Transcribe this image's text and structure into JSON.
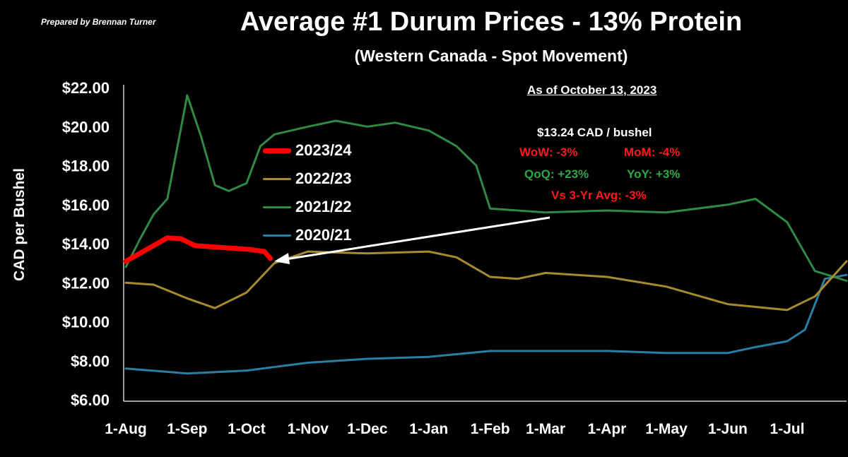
{
  "header": {
    "credit": "Prepared by Brennan Turner",
    "title": "Average #1 Durum Prices - 13% Protein",
    "subtitle": "(Western Canada - Spot Movement)"
  },
  "annotation": {
    "as_of": "As of October 13, 2023",
    "price": "$13.24 CAD / bushel",
    "wow": "WoW: -3%",
    "mom": "MoM: -4%",
    "qoq": "QoQ: +23%",
    "yoy": "YoY: +3%",
    "vs3yr": "Vs 3-Yr Avg: -3%"
  },
  "colors": {
    "red": "#ff0000",
    "gold": "#a88a2e",
    "green": "#2f8a44",
    "blue": "#2a7ea3",
    "stat_red": "#ff1a1a",
    "stat_green": "#2fa84a"
  },
  "chart_data": {
    "type": "line",
    "title": "Average #1 Durum Prices - 13% Protein",
    "subtitle": "(Western Canada - Spot Movement)",
    "xlabel": "",
    "ylabel": "CAD per Bushel",
    "ylim": [
      6,
      22
    ],
    "yticks": [
      "$6.00",
      "$8.00",
      "$10.00",
      "$12.00",
      "$14.00",
      "$16.00",
      "$18.00",
      "$20.00",
      "$22.00"
    ],
    "xticks": [
      "1-Aug",
      "1-Sep",
      "1-Oct",
      "1-Nov",
      "1-Dec",
      "1-Jan",
      "1-Feb",
      "1-Mar",
      "1-Apr",
      "1-May",
      "1-Jun",
      "1-Jul"
    ],
    "grid": false,
    "legend": "upper-center",
    "series": [
      {
        "name": "2023/24",
        "color": "#ff0000",
        "x": [
          "1-Aug",
          "8-Aug",
          "15-Aug",
          "22-Aug",
          "29-Aug",
          "5-Sep",
          "12-Sep",
          "19-Sep",
          "26-Sep",
          "3-Oct",
          "10-Oct",
          "13-Oct"
        ],
        "values": [
          13.1,
          13.5,
          13.9,
          14.3,
          14.25,
          13.9,
          13.85,
          13.8,
          13.75,
          13.7,
          13.6,
          13.24
        ]
      },
      {
        "name": "2022/23",
        "color": "#a88a2e",
        "x": [
          "1-Aug",
          "15-Aug",
          "1-Sep",
          "15-Sep",
          "1-Oct",
          "15-Oct",
          "1-Nov",
          "1-Dec",
          "1-Jan",
          "15-Jan",
          "1-Feb",
          "15-Feb",
          "1-Mar",
          "1-Apr",
          "1-May",
          "1-Jun",
          "1-Jul",
          "15-Jul",
          "31-Jul"
        ],
        "values": [
          12.0,
          11.9,
          11.2,
          10.7,
          11.5,
          13.0,
          13.6,
          13.5,
          13.6,
          13.3,
          12.3,
          12.2,
          12.5,
          12.3,
          11.8,
          10.9,
          10.6,
          11.3,
          13.1
        ]
      },
      {
        "name": "2021/22",
        "color": "#2f8a44",
        "x": [
          "1-Aug",
          "8-Aug",
          "15-Aug",
          "22-Aug",
          "29-Aug",
          "1-Sep",
          "8-Sep",
          "15-Sep",
          "22-Sep",
          "1-Oct",
          "8-Oct",
          "15-Oct",
          "1-Nov",
          "15-Nov",
          "1-Dec",
          "15-Dec",
          "1-Jan",
          "15-Jan",
          "25-Jan",
          "1-Feb",
          "15-Feb",
          "1-Mar",
          "1-Apr",
          "1-May",
          "1-Jun",
          "15-Jun",
          "1-Jul",
          "15-Jul",
          "31-Jul"
        ],
        "values": [
          12.8,
          14.2,
          15.5,
          16.3,
          20.0,
          21.6,
          19.5,
          17.0,
          16.7,
          17.1,
          19.0,
          19.6,
          20.0,
          20.3,
          20.0,
          20.2,
          19.8,
          19.0,
          18.0,
          15.8,
          15.7,
          15.6,
          15.7,
          15.6,
          16.0,
          16.3,
          15.1,
          12.6,
          12.1
        ]
      },
      {
        "name": "2020/21",
        "color": "#2a7ea3",
        "x": [
          "1-Aug",
          "1-Sep",
          "1-Oct",
          "1-Nov",
          "1-Dec",
          "1-Jan",
          "1-Feb",
          "1-Mar",
          "1-Apr",
          "1-May",
          "1-Jun",
          "15-Jun",
          "1-Jul",
          "10-Jul",
          "20-Jul",
          "31-Jul"
        ],
        "values": [
          7.6,
          7.35,
          7.5,
          7.9,
          8.1,
          8.2,
          8.5,
          8.5,
          8.5,
          8.4,
          8.4,
          8.7,
          9.0,
          9.6,
          12.2,
          12.4
        ]
      }
    ]
  }
}
